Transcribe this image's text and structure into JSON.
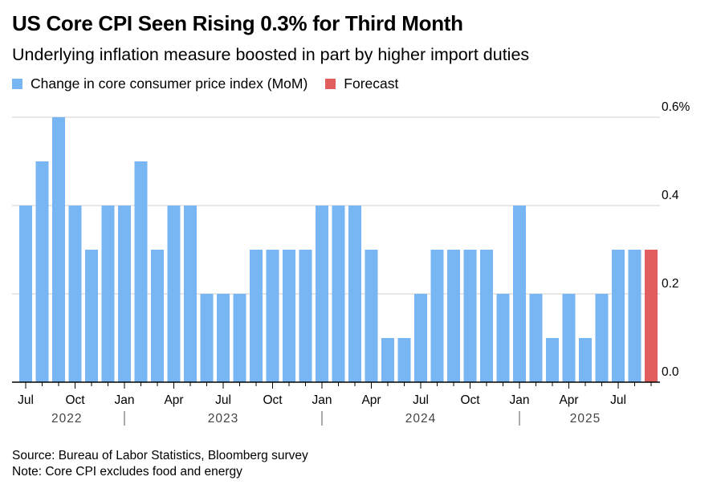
{
  "title": "US Core CPI Seen Rising 0.3% for Third Month",
  "subtitle": "Underlying inflation measure boosted in part by higher import duties",
  "source": "Source: Bureau of Labor Statistics, Bloomberg survey",
  "note": "Note: Core CPI excludes food and energy",
  "chart_data": {
    "type": "bar",
    "title": "US Core CPI Seen Rising 0.3% for Third Month",
    "ylabel": "",
    "xlabel": "",
    "ylim": [
      0,
      0.6
    ],
    "yticks": [
      "0.0",
      "0.2",
      "0.4",
      "0.6%"
    ],
    "ytick_values": [
      0,
      0.2,
      0.4,
      0.6
    ],
    "grid": true,
    "legend_placement": "top-left",
    "legend": [
      {
        "label": "Change in core consumer price index (MoM)",
        "color": "#77b5f3"
      },
      {
        "label": "Forecast",
        "color": "#e25d5d"
      }
    ],
    "month_labels": [
      {
        "index": 0,
        "label": "Jul"
      },
      {
        "index": 3,
        "label": "Oct"
      },
      {
        "index": 6,
        "label": "Jan"
      },
      {
        "index": 9,
        "label": "Apr"
      },
      {
        "index": 12,
        "label": "Jul"
      },
      {
        "index": 15,
        "label": "Oct"
      },
      {
        "index": 18,
        "label": "Jan"
      },
      {
        "index": 21,
        "label": "Apr"
      },
      {
        "index": 24,
        "label": "Jul"
      },
      {
        "index": 27,
        "label": "Oct"
      },
      {
        "index": 30,
        "label": "Jan"
      },
      {
        "index": 33,
        "label": "Apr"
      },
      {
        "index": 36,
        "label": "Jul"
      }
    ],
    "year_labels": [
      {
        "center": 2.5,
        "label": "2022"
      },
      {
        "center": 12,
        "label": "2023"
      },
      {
        "center": 24,
        "label": "2024"
      },
      {
        "center": 34,
        "label": "2025"
      }
    ],
    "year_separators": [
      6,
      18,
      30
    ],
    "categories": [
      "2022-07",
      "2022-08",
      "2022-09",
      "2022-10",
      "2022-11",
      "2022-12",
      "2023-01",
      "2023-02",
      "2023-03",
      "2023-04",
      "2023-05",
      "2023-06",
      "2023-07",
      "2023-08",
      "2023-09",
      "2023-10",
      "2023-11",
      "2023-12",
      "2024-01",
      "2024-02",
      "2024-03",
      "2024-04",
      "2024-05",
      "2024-06",
      "2024-07",
      "2024-08",
      "2024-09",
      "2024-10",
      "2024-11",
      "2024-12",
      "2025-01",
      "2025-02",
      "2025-03",
      "2025-04",
      "2025-05",
      "2025-06",
      "2025-07",
      "2025-08",
      "2025-09"
    ],
    "series": [
      {
        "name": "Change in core consumer price index (MoM)",
        "values": [
          0.4,
          0.5,
          0.6,
          0.4,
          0.3,
          0.4,
          0.4,
          0.5,
          0.3,
          0.4,
          0.4,
          0.2,
          0.2,
          0.2,
          0.3,
          0.3,
          0.3,
          0.3,
          0.4,
          0.4,
          0.4,
          0.3,
          0.1,
          0.1,
          0.2,
          0.3,
          0.3,
          0.3,
          0.3,
          0.2,
          0.4,
          0.2,
          0.1,
          0.2,
          0.1,
          0.2,
          0.3,
          0.3,
          null
        ]
      },
      {
        "name": "Forecast",
        "values": [
          null,
          null,
          null,
          null,
          null,
          null,
          null,
          null,
          null,
          null,
          null,
          null,
          null,
          null,
          null,
          null,
          null,
          null,
          null,
          null,
          null,
          null,
          null,
          null,
          null,
          null,
          null,
          null,
          null,
          null,
          null,
          null,
          null,
          null,
          null,
          null,
          null,
          null,
          0.3
        ]
      }
    ]
  }
}
